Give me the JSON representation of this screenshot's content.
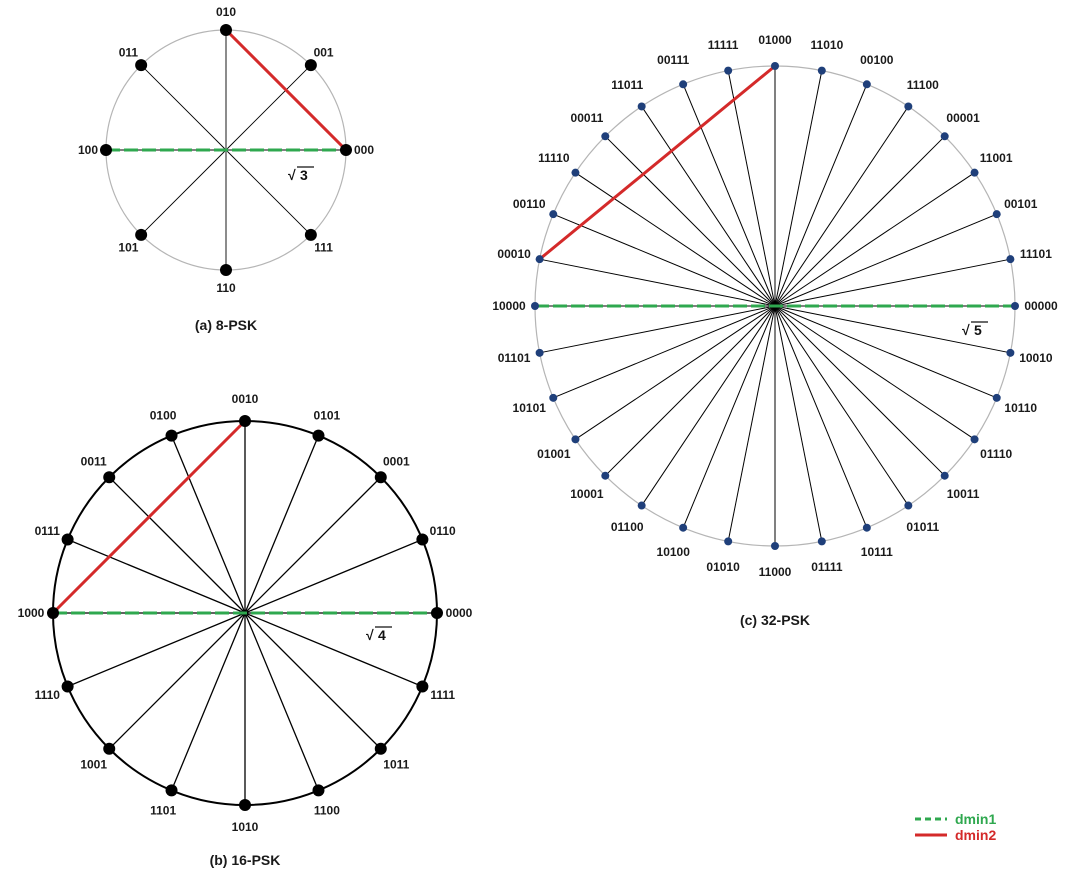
{
  "diagrams": [
    {
      "id": "psk8",
      "caption": "(a) 8-PSK",
      "distance_label": "3",
      "circle_style": "thin-gray",
      "points": [
        {
          "label": "000",
          "angle_deg": 0
        },
        {
          "label": "001",
          "angle_deg": 45
        },
        {
          "label": "010",
          "angle_deg": 90
        },
        {
          "label": "011",
          "angle_deg": 135
        },
        {
          "label": "100",
          "angle_deg": 180
        },
        {
          "label": "101",
          "angle_deg": 225
        },
        {
          "label": "110",
          "angle_deg": 270
        },
        {
          "label": "111",
          "angle_deg": 315
        }
      ],
      "dmin1_between": [
        "100",
        "000"
      ],
      "dmin2_between": [
        "010",
        "000"
      ]
    },
    {
      "id": "psk16",
      "caption": "(b) 16-PSK",
      "distance_label": "4",
      "circle_style": "thick-black",
      "points": [
        {
          "label": "0000",
          "angle_deg": 0
        },
        {
          "label": "0110",
          "angle_deg": 22.5
        },
        {
          "label": "0001",
          "angle_deg": 45
        },
        {
          "label": "0101",
          "angle_deg": 67.5
        },
        {
          "label": "0010",
          "angle_deg": 90
        },
        {
          "label": "0100",
          "angle_deg": 112.5
        },
        {
          "label": "0011",
          "angle_deg": 135
        },
        {
          "label": "0111",
          "angle_deg": 157.5
        },
        {
          "label": "1000",
          "angle_deg": 180
        },
        {
          "label": "1110",
          "angle_deg": 202.5
        },
        {
          "label": "1001",
          "angle_deg": 225
        },
        {
          "label": "1101",
          "angle_deg": 247.5
        },
        {
          "label": "1010",
          "angle_deg": 270
        },
        {
          "label": "1100",
          "angle_deg": 292.5
        },
        {
          "label": "1011",
          "angle_deg": 315
        },
        {
          "label": "1111",
          "angle_deg": 337.5
        }
      ],
      "dmin1_between": [
        "1000",
        "0000"
      ],
      "dmin2_between": [
        "1000",
        "0010"
      ]
    },
    {
      "id": "psk32",
      "caption": "(c) 32-PSK",
      "distance_label": "5",
      "circle_style": "thin-gray",
      "points": [
        {
          "label": "00000",
          "angle_deg": 0
        },
        {
          "label": "11101",
          "angle_deg": 11.25
        },
        {
          "label": "00101",
          "angle_deg": 22.5
        },
        {
          "label": "11001",
          "angle_deg": 33.75
        },
        {
          "label": "00001",
          "angle_deg": 45
        },
        {
          "label": "11100",
          "angle_deg": 56.25
        },
        {
          "label": "00100",
          "angle_deg": 67.5
        },
        {
          "label": "11010",
          "angle_deg": 78.75
        },
        {
          "label": "01000",
          "angle_deg": 90
        },
        {
          "label": "11111",
          "angle_deg": 101.25
        },
        {
          "label": "00111",
          "angle_deg": 112.5
        },
        {
          "label": "11011",
          "angle_deg": 123.75
        },
        {
          "label": "00011",
          "angle_deg": 135
        },
        {
          "label": "11110",
          "angle_deg": 146.25
        },
        {
          "label": "00110",
          "angle_deg": 157.5
        },
        {
          "label": "00010",
          "angle_deg": 168.75
        },
        {
          "label": "10000",
          "angle_deg": 180
        },
        {
          "label": "01101",
          "angle_deg": 191.25
        },
        {
          "label": "10101",
          "angle_deg": 202.5
        },
        {
          "label": "01001",
          "angle_deg": 213.75
        },
        {
          "label": "10001",
          "angle_deg": 225
        },
        {
          "label": "01100",
          "angle_deg": 236.25
        },
        {
          "label": "10100",
          "angle_deg": 247.5
        },
        {
          "label": "01010",
          "angle_deg": 258.75
        },
        {
          "label": "11000",
          "angle_deg": 270
        },
        {
          "label": "01111",
          "angle_deg": 281.25
        },
        {
          "label": "10111",
          "angle_deg": 292.5
        },
        {
          "label": "01011",
          "angle_deg": 303.75
        },
        {
          "label": "10011",
          "angle_deg": 315
        },
        {
          "label": "01110",
          "angle_deg": 326.25
        },
        {
          "label": "10110",
          "angle_deg": 337.5
        },
        {
          "label": "10010",
          "angle_deg": 348.75
        }
      ],
      "dmin1_between": [
        "10000",
        "00000"
      ],
      "dmin2_between": [
        "00010",
        "01000"
      ]
    }
  ],
  "legend": {
    "items": [
      {
        "label": "dmin1",
        "color": "#2fa84f",
        "style": "dashed"
      },
      {
        "label": "dmin2",
        "color": "#d42a2a",
        "style": "solid"
      }
    ]
  },
  "colors": {
    "dmin1": "#2fa84f",
    "dmin2": "#d42a2a",
    "point_8": "#000000",
    "point_16": "#000000",
    "point_32": "#1f3f7a",
    "spoke": "#000000",
    "circle_thin": "#b5b5b5",
    "circle_thick": "#000000"
  },
  "sqrt_symbol": "√"
}
